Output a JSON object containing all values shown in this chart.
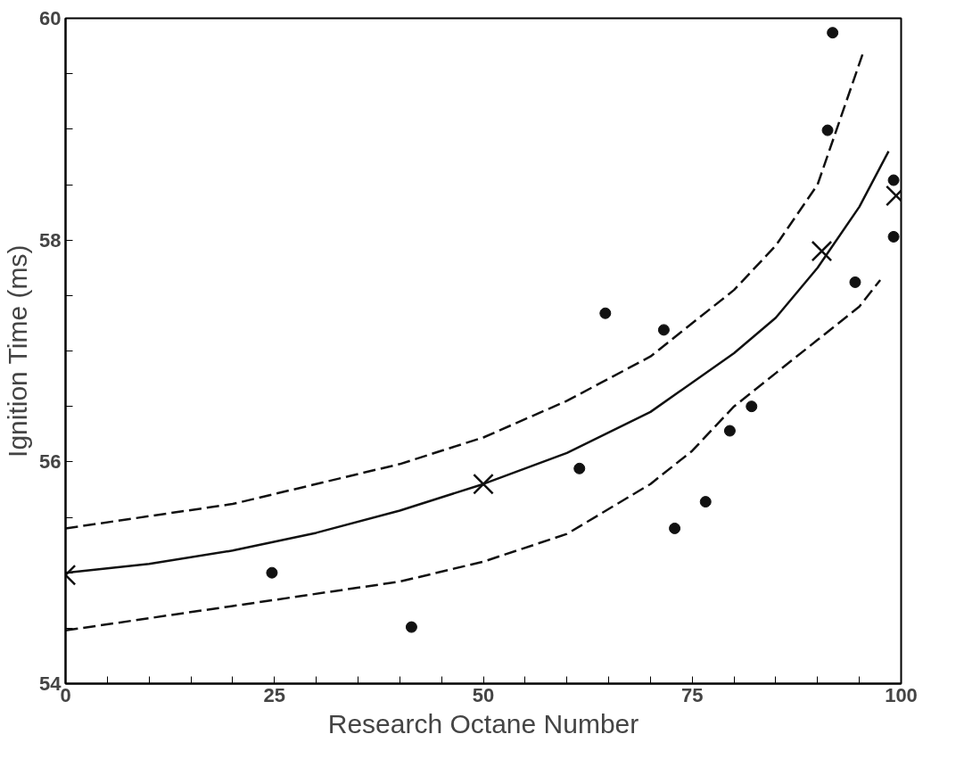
{
  "chart_data": {
    "type": "scatter",
    "xlabel": "Research Octane Number",
    "ylabel": "Ignition Time (ms)",
    "xlim": [
      0,
      100
    ],
    "ylim": [
      54,
      60
    ],
    "xticks": [
      0,
      {
        "value": 5,
        "label": null
      },
      {
        "value": 10,
        "label": null
      },
      {
        "value": 15,
        "label": null
      },
      {
        "value": 20,
        "label": null
      },
      25,
      {
        "value": 30,
        "label": null
      },
      {
        "value": 35,
        "label": null
      },
      {
        "value": 40,
        "label": null
      },
      {
        "value": 45,
        "label": null
      },
      50,
      {
        "value": 55,
        "label": null
      },
      {
        "value": 60,
        "label": null
      },
      {
        "value": 65,
        "label": null
      },
      {
        "value": 70,
        "label": null
      },
      75,
      {
        "value": 80,
        "label": null
      },
      {
        "value": 85,
        "label": null
      },
      {
        "value": 90,
        "label": null
      },
      {
        "value": 95,
        "label": null
      },
      100
    ],
    "yticks": [
      54,
      {
        "value": 54.5,
        "label": null
      },
      {
        "value": 55,
        "label": null
      },
      {
        "value": 55.5,
        "label": null
      },
      56,
      {
        "value": 56.5,
        "label": null
      },
      {
        "value": 57,
        "label": null
      },
      {
        "value": 57.5,
        "label": null
      },
      58,
      {
        "value": 58.5,
        "label": null
      },
      {
        "value": 59,
        "label": null
      },
      {
        "value": 59.5,
        "label": null
      },
      60
    ],
    "grid": false,
    "series": [
      {
        "marker": "circle",
        "color": "#111111",
        "x": [
          24.7,
          41.4,
          61.5,
          64.6,
          71.6,
          72.9,
          76.6,
          79.5,
          82.1,
          91.2,
          91.8,
          94.5,
          99.1,
          99.1
        ],
        "values": [
          55.0,
          54.51,
          55.94,
          57.34,
          57.19,
          55.4,
          55.64,
          56.28,
          56.5,
          58.99,
          59.87,
          57.62,
          58.54,
          58.03
        ]
      },
      {
        "marker": "cross",
        "color": "#111111",
        "x": [
          0,
          50,
          90.5,
          99.4
        ],
        "values": [
          54.98,
          55.8,
          57.9,
          58.4
        ]
      },
      {
        "type": "line",
        "line_style": "solid",
        "color": "#111111",
        "x": [
          0,
          10,
          20,
          30,
          40,
          50,
          60,
          70,
          80,
          85,
          90,
          95,
          98.5
        ],
        "values": [
          55.0,
          55.08,
          55.2,
          55.36,
          55.56,
          55.8,
          56.08,
          56.45,
          56.98,
          57.3,
          57.75,
          58.3,
          58.8
        ]
      },
      {
        "type": "line",
        "line_style": "dashed",
        "color": "#111111",
        "x": [
          0,
          20,
          40,
          50,
          60,
          70,
          80,
          85,
          90,
          95.5
        ],
        "values": [
          55.4,
          55.62,
          55.98,
          56.22,
          56.55,
          56.95,
          57.55,
          57.95,
          58.5,
          59.7
        ]
      },
      {
        "type": "line",
        "line_style": "dashed",
        "color": "#111111",
        "x": [
          0,
          20,
          40,
          50,
          60,
          70,
          75,
          80,
          85,
          90,
          95,
          97.5
        ],
        "values": [
          54.48,
          54.7,
          54.92,
          55.1,
          55.35,
          55.8,
          56.1,
          56.5,
          56.8,
          57.1,
          57.4,
          57.64
        ]
      }
    ]
  }
}
